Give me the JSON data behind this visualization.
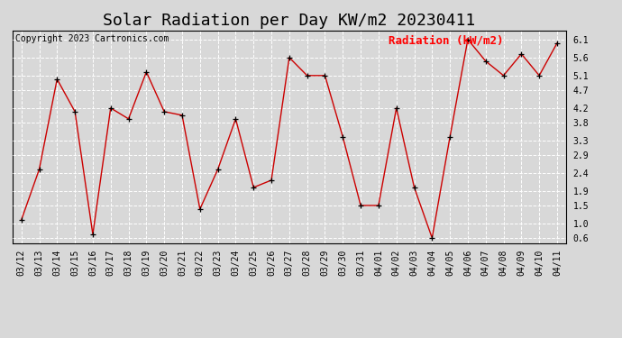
{
  "title": "Solar Radiation per Day KW/m2 20230411",
  "copyright": "Copyright 2023 Cartronics.com",
  "legend_label": "Radiation (kW/m2)",
  "dates": [
    "03/12",
    "03/13",
    "03/14",
    "03/15",
    "03/16",
    "03/17",
    "03/18",
    "03/19",
    "03/20",
    "03/21",
    "03/22",
    "03/23",
    "03/24",
    "03/25",
    "03/26",
    "03/27",
    "03/28",
    "03/29",
    "03/30",
    "03/31",
    "04/01",
    "04/02",
    "04/03",
    "04/04",
    "04/05",
    "04/06",
    "04/07",
    "04/08",
    "04/09",
    "04/10",
    "04/11"
  ],
  "values": [
    1.1,
    2.5,
    5.0,
    4.1,
    0.7,
    4.2,
    3.9,
    5.2,
    4.1,
    4.0,
    1.4,
    2.5,
    3.9,
    2.0,
    2.2,
    5.6,
    5.1,
    5.1,
    3.4,
    1.5,
    1.5,
    4.2,
    2.0,
    0.6,
    3.4,
    6.1,
    5.5,
    5.1,
    5.7,
    5.1,
    6.0
  ],
  "yticks": [
    0.6,
    1.0,
    1.5,
    1.9,
    2.4,
    2.9,
    3.3,
    3.8,
    4.2,
    4.7,
    5.1,
    5.6,
    6.1
  ],
  "ymin": 0.45,
  "ymax": 6.35,
  "line_color": "#cc0000",
  "marker_color": "black",
  "bg_color": "#d8d8d8",
  "plot_bg_color": "#d8d8d8",
  "grid_color": "#ffffff",
  "title_fontsize": 13,
  "copyright_fontsize": 7,
  "legend_fontsize": 9,
  "tick_fontsize": 7
}
